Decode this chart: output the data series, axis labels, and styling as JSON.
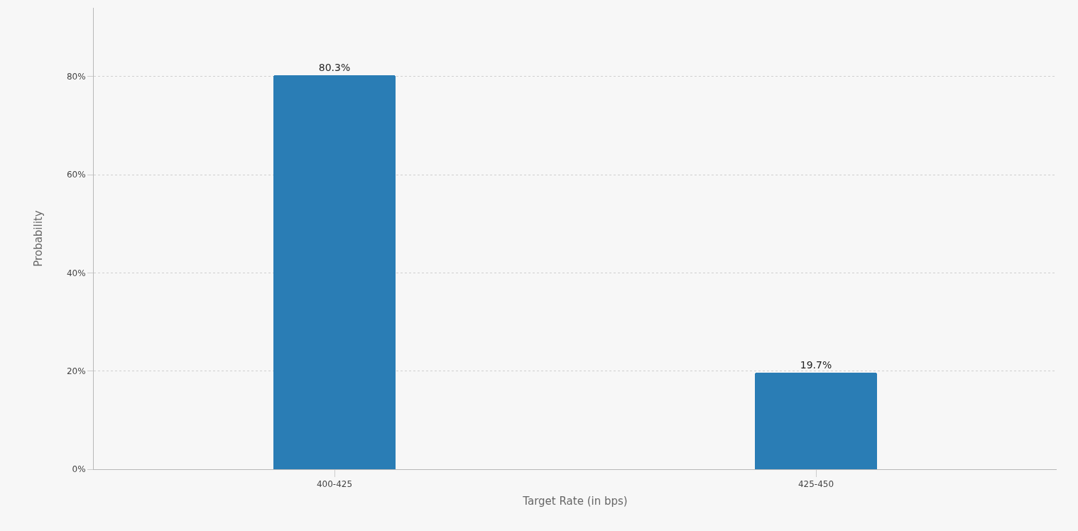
{
  "chart_data": {
    "type": "bar",
    "xlabel": "Target Rate (in bps)",
    "ylabel": "Probability",
    "categories": [
      "400-425",
      "425-450"
    ],
    "values": [
      80.3,
      19.7
    ],
    "color": "#2a7db5",
    "value_labels": [
      "80.3%",
      "19.7%"
    ],
    "ylim": [
      0,
      94
    ],
    "yticks": [
      {
        "value": 0,
        "label": "0%"
      },
      {
        "value": 20,
        "label": "20%"
      },
      {
        "value": 40,
        "label": "40%"
      },
      {
        "value": 60,
        "label": "60%"
      },
      {
        "value": 80,
        "label": "80%"
      }
    ],
    "grid": "y"
  }
}
